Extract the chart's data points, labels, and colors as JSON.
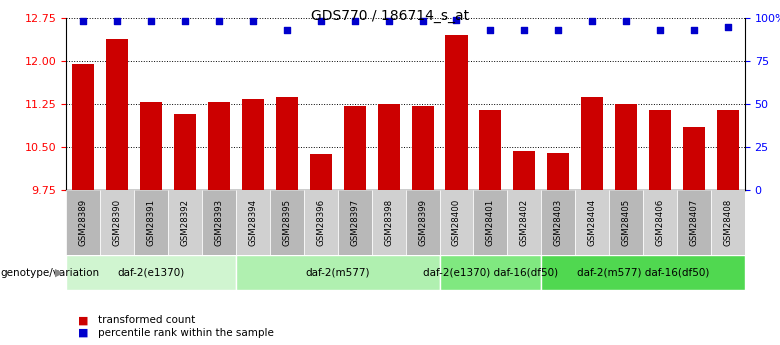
{
  "title": "GDS770 / 186714_s_at",
  "samples": [
    "GSM28389",
    "GSM28390",
    "GSM28391",
    "GSM28392",
    "GSM28393",
    "GSM28394",
    "GSM28395",
    "GSM28396",
    "GSM28397",
    "GSM28398",
    "GSM28399",
    "GSM28400",
    "GSM28401",
    "GSM28402",
    "GSM28403",
    "GSM28404",
    "GSM28405",
    "GSM28406",
    "GSM28407",
    "GSM28408"
  ],
  "bar_values": [
    11.95,
    12.38,
    11.28,
    11.08,
    11.28,
    11.33,
    11.38,
    10.38,
    11.22,
    11.25,
    11.22,
    12.45,
    11.15,
    10.43,
    10.4,
    11.38,
    11.25,
    11.15,
    10.85,
    11.15
  ],
  "percentile_values": [
    98,
    98,
    98,
    98,
    98,
    98,
    93,
    98,
    98,
    98,
    98,
    99,
    93,
    93,
    93,
    98,
    98,
    93,
    93,
    95
  ],
  "ylim_left": [
    9.75,
    12.75
  ],
  "ylim_right": [
    0,
    100
  ],
  "yticks_left": [
    9.75,
    10.5,
    11.25,
    12.0,
    12.75
  ],
  "yticks_right": [
    0,
    25,
    50,
    75,
    100
  ],
  "bar_color": "#cc0000",
  "dot_color": "#0000cc",
  "groups": [
    {
      "label": "daf-2(e1370)",
      "start": 0,
      "end": 5
    },
    {
      "label": "daf-2(m577)",
      "start": 5,
      "end": 11
    },
    {
      "label": "daf-2(e1370) daf-16(df50)",
      "start": 11,
      "end": 14
    },
    {
      "label": "daf-2(m577) daf-16(df50)",
      "start": 14,
      "end": 20
    }
  ],
  "group_colors": [
    "#d0f5d0",
    "#b0f0b0",
    "#80e880",
    "#50d850"
  ],
  "genotype_label": "genotype/variation",
  "legend_bar_label": "transformed count",
  "legend_dot_label": "percentile rank within the sample",
  "sample_bg_even": "#b8b8b8",
  "sample_bg_odd": "#d0d0d0",
  "fig_bg": "#ffffff"
}
